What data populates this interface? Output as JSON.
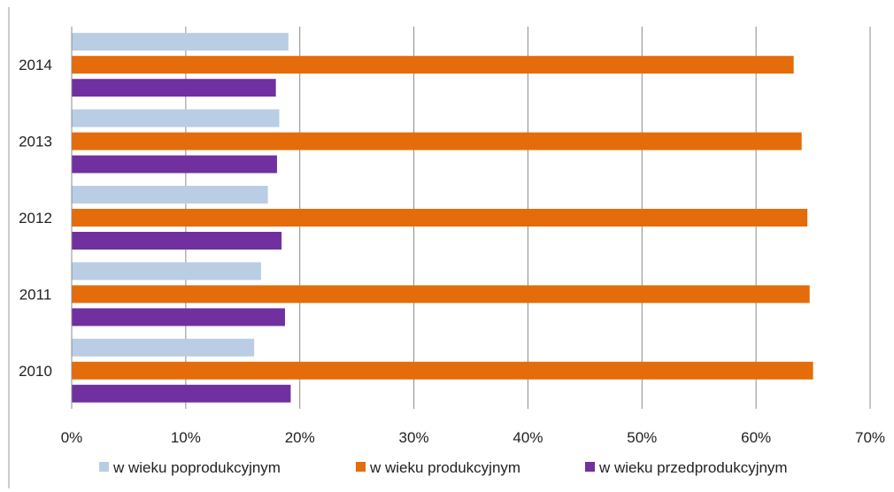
{
  "chart_data": {
    "type": "bar",
    "orientation": "horizontal",
    "categories": [
      "2010",
      "2011",
      "2012",
      "2013",
      "2014"
    ],
    "series": [
      {
        "name": "w wieku poprodukcyjnym",
        "color": "#b9cde5",
        "values": [
          0.16,
          0.166,
          0.172,
          0.182,
          0.19
        ]
      },
      {
        "name": "w wieku produkcyjnym",
        "color": "#e46c0a",
        "values": [
          0.65,
          0.647,
          0.645,
          0.64,
          0.633
        ]
      },
      {
        "name": "w wieku przedprodukcyjnym",
        "color": "#7030a0",
        "values": [
          0.192,
          0.187,
          0.184,
          0.18,
          0.179
        ]
      }
    ],
    "xlim": [
      0,
      0.7
    ],
    "xticks": [
      0,
      0.1,
      0.2,
      0.3,
      0.4,
      0.5,
      0.6,
      0.7
    ],
    "xtick_labels": [
      "0%",
      "10%",
      "20%",
      "30%",
      "40%",
      "50%",
      "60%",
      "70%"
    ],
    "grid": "vertical",
    "legend_position": "bottom",
    "xlabel": "",
    "ylabel": "",
    "title": ""
  }
}
